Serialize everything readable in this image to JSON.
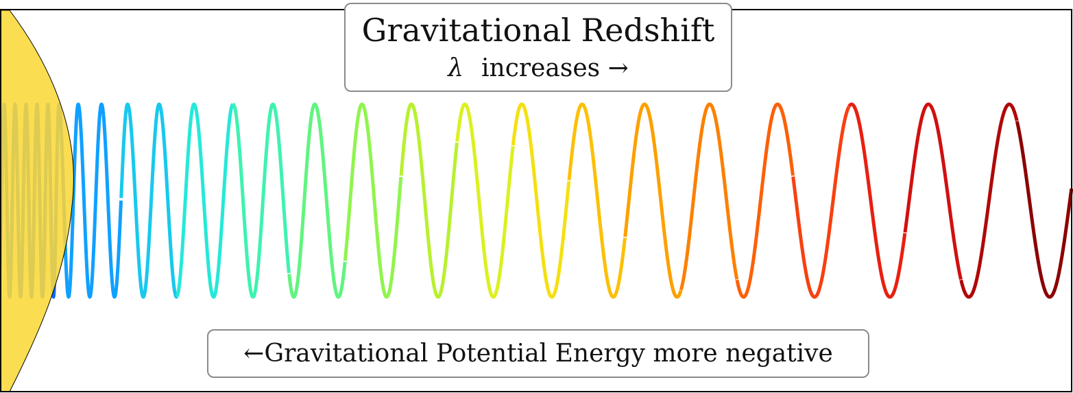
{
  "title": "Gravitational Redshift",
  "subtitle": {
    "symbol": "λ",
    "text": "increases",
    "arrow": "→"
  },
  "potential_label": {
    "arrow": "←",
    "text": "Gravitational Potential Energy more negative"
  },
  "colors": {
    "star": "#fbd83a",
    "frame": "#000000",
    "box_border": "#8a8a8a",
    "wave_start": "#0060ff",
    "wave_end": "#8b0000"
  },
  "wave": {
    "description_palette": "jet colormap, blue to dark red",
    "segments_colors": [
      "#0a6cff",
      "#10a0ff",
      "#18c8ee",
      "#26e8d8",
      "#3ef2b0",
      "#60f480",
      "#90f44e",
      "#b8f030",
      "#dcf020",
      "#f4e010",
      "#fcc008",
      "#fca000",
      "#fc8000",
      "#fc6008",
      "#f84010",
      "#e82010",
      "#d01010",
      "#b00808",
      "#8b0000"
    ]
  }
}
